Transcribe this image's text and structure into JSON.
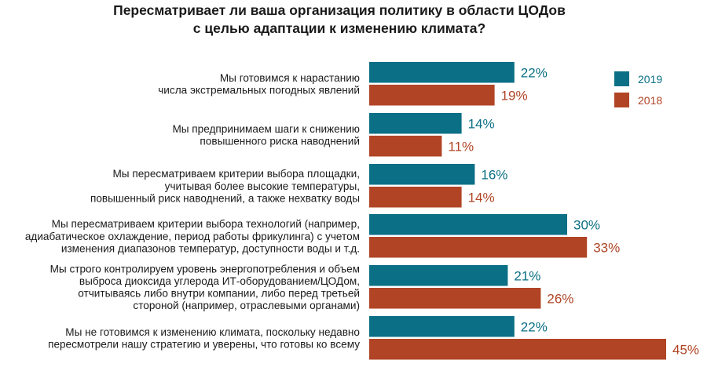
{
  "chart_data": {
    "type": "bar",
    "orientation": "horizontal",
    "title": [
      "Пересматривает ли ваша организация политику в области ЦОДов",
      "с целью адаптации к изменению климата?"
    ],
    "categories": [
      [
        "Мы готовимся к нарастанию",
        "числа экстремальных погодных явлений"
      ],
      [
        "Мы предпринимаем шаги к снижению",
        "повышенного риска наводнений"
      ],
      [
        "Мы пересматриваем критерии выбора площадки,",
        "учитывая более высокие температуры,",
        "повышенный риск наводнений, а также нехватку воды"
      ],
      [
        "Мы пересматриваем критерии выбора технологий (например,",
        "адиабатическое охлаждение, период работы фрикулинга) с учетом",
        "изменения диапазонов температур, доступности воды и т.д."
      ],
      [
        "Мы строго контролируем уровень энергопотребления и объем",
        "выброса диоксида углерода ИТ-оборудованием/ЦОДом,",
        "отчитываясь либо внутри компании, либо перед третьей",
        "стороной (например, отраслевыми органами)"
      ],
      [
        "Мы не готовимся к изменению климата, поскольку недавно",
        "пересмотрели нашу стратегию и уверены, что готовы ко всему"
      ]
    ],
    "series": [
      {
        "name": "2019",
        "color": "#0b6f85",
        "values": [
          22,
          14,
          16,
          30,
          21,
          22
        ]
      },
      {
        "name": "2018",
        "color": "#b04425",
        "values": [
          19,
          11,
          14,
          33,
          26,
          45
        ]
      }
    ],
    "value_suffix": "%",
    "xlim": [
      0,
      50
    ],
    "grid": false,
    "legend_position": "top-right"
  }
}
